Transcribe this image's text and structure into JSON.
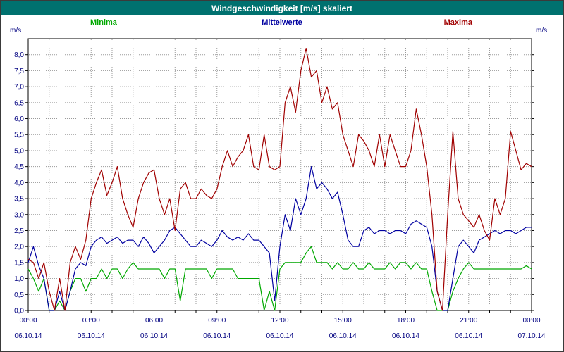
{
  "header": {
    "title": "Windgeschwindigkeit [m/s] skaliert",
    "bg_color": "#00716f"
  },
  "legend": [
    {
      "label": "Minima",
      "color": "#00a800"
    },
    {
      "label": "Mittelwerte",
      "color": "#0000a0"
    },
    {
      "label": "Maxima",
      "color": "#a00000"
    }
  ],
  "chart_data": {
    "type": "line",
    "title": "Windgeschwindigkeit [m/s] skaliert",
    "ylabel": "m/s",
    "ylim": [
      0,
      8.5
    ],
    "ytick_step": 0.5,
    "ytick_max": 8,
    "grid": "dotted",
    "x_range": [
      0,
      24
    ],
    "x_interval_hours": 0.25,
    "x_tick_labels": [
      "00:00",
      "03:00",
      "06:00",
      "09:00",
      "12:00",
      "15:00",
      "18:00",
      "21:00",
      "00:00"
    ],
    "x_date_labels": [
      "06.10.14",
      "06.10.14",
      "06.10.14",
      "06.10.14",
      "06.10.14",
      "06.10.14",
      "06.10.14",
      "06.10.14",
      "07.10.14"
    ],
    "series": [
      {
        "name": "Minima",
        "color": "#00a800",
        "values": [
          1.3,
          1.0,
          0.6,
          1.0,
          0.0,
          0.0,
          0.3,
          0.0,
          0.6,
          1.0,
          1.0,
          0.6,
          1.0,
          1.0,
          1.3,
          1.0,
          1.3,
          1.3,
          1.0,
          1.3,
          1.5,
          1.3,
          1.3,
          1.3,
          1.3,
          1.3,
          1.0,
          1.3,
          1.3,
          0.3,
          1.3,
          1.3,
          1.3,
          1.3,
          1.3,
          1.0,
          1.3,
          1.3,
          1.3,
          1.3,
          1.0,
          1.0,
          1.0,
          1.0,
          1.0,
          0.0,
          0.6,
          0.0,
          1.3,
          1.5,
          1.5,
          1.5,
          1.5,
          1.8,
          2.0,
          1.5,
          1.5,
          1.5,
          1.3,
          1.5,
          1.3,
          1.3,
          1.5,
          1.3,
          1.3,
          1.5,
          1.3,
          1.3,
          1.3,
          1.5,
          1.3,
          1.5,
          1.5,
          1.3,
          1.5,
          1.3,
          1.3,
          0.6,
          0.0,
          0.0,
          0.0,
          0.6,
          1.0,
          1.3,
          1.5,
          1.3,
          1.3,
          1.3,
          1.3,
          1.3,
          1.3,
          1.3,
          1.3,
          1.3,
          1.3,
          1.4,
          1.3
        ]
      },
      {
        "name": "Mittelwerte",
        "color": "#0000a0",
        "values": [
          1.5,
          2.0,
          1.4,
          1.0,
          0.0,
          0.0,
          0.6,
          0.0,
          0.6,
          1.3,
          1.5,
          1.4,
          2.0,
          2.2,
          2.3,
          2.1,
          2.2,
          2.3,
          2.1,
          2.2,
          2.2,
          2.0,
          2.3,
          2.1,
          1.8,
          2.0,
          2.2,
          2.5,
          2.6,
          2.4,
          2.2,
          2.0,
          2.0,
          2.2,
          2.1,
          2.0,
          2.2,
          2.5,
          2.3,
          2.2,
          2.3,
          2.2,
          2.4,
          2.2,
          2.2,
          2.0,
          1.8,
          0.3,
          2.0,
          3.0,
          2.5,
          3.5,
          3.0,
          3.5,
          4.5,
          3.8,
          4.0,
          3.8,
          3.5,
          3.7,
          3.0,
          2.2,
          2.0,
          2.0,
          2.5,
          2.6,
          2.4,
          2.5,
          2.5,
          2.4,
          2.5,
          2.5,
          2.4,
          2.7,
          2.8,
          2.7,
          2.6,
          2.0,
          0.6,
          0.0,
          0.0,
          1.0,
          2.0,
          2.2,
          2.0,
          1.8,
          2.2,
          2.3,
          2.4,
          2.5,
          2.4,
          2.5,
          2.5,
          2.4,
          2.5,
          2.6,
          2.6
        ]
      },
      {
        "name": "Maxima",
        "color": "#a00000",
        "values": [
          1.6,
          1.5,
          1.0,
          1.5,
          0.6,
          0.0,
          1.0,
          0.0,
          1.5,
          2.0,
          1.6,
          2.2,
          3.5,
          4.0,
          4.4,
          3.6,
          4.0,
          4.5,
          3.5,
          3.0,
          2.6,
          3.5,
          4.0,
          4.3,
          4.4,
          3.5,
          3.0,
          3.5,
          2.5,
          3.8,
          4.0,
          3.5,
          3.5,
          3.8,
          3.6,
          3.5,
          3.8,
          4.5,
          5.0,
          4.5,
          4.8,
          5.0,
          5.5,
          4.5,
          4.4,
          5.5,
          4.5,
          4.4,
          4.5,
          6.5,
          7.0,
          6.2,
          7.5,
          8.2,
          7.3,
          7.5,
          6.5,
          7.0,
          6.3,
          6.5,
          5.5,
          5.0,
          4.5,
          5.5,
          5.3,
          5.0,
          4.5,
          5.5,
          4.5,
          5.5,
          5.0,
          4.5,
          4.5,
          5.0,
          6.3,
          5.5,
          4.5,
          3.0,
          0.6,
          0.0,
          3.0,
          5.6,
          3.5,
          3.0,
          2.8,
          2.6,
          3.0,
          2.5,
          2.2,
          3.5,
          3.0,
          3.5,
          5.6,
          5.0,
          4.4,
          4.6,
          4.5
        ]
      }
    ]
  }
}
